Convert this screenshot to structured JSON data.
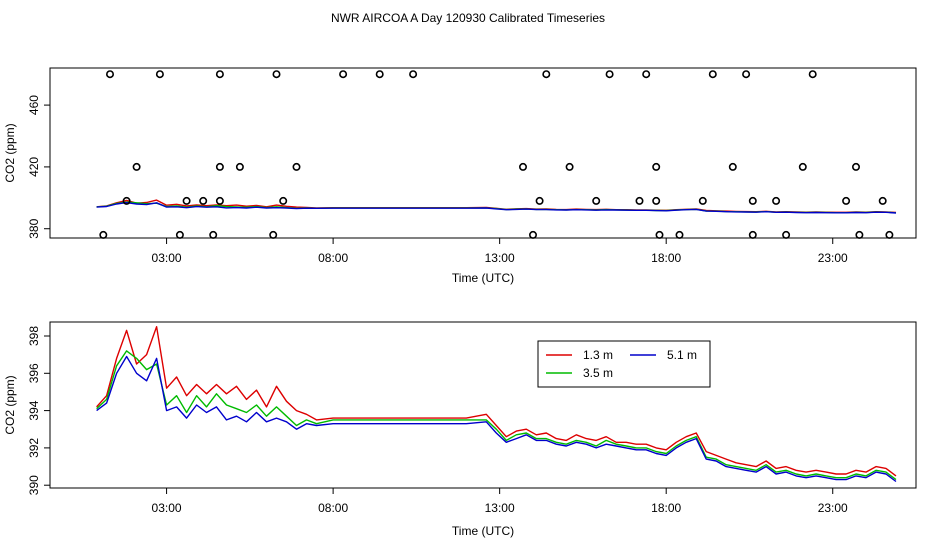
{
  "title": "NWR AIRCOA A  Day 120930  Calibrated Timeseries",
  "chart_data": [
    {
      "type": "scatter",
      "name": "full-range",
      "xlabel": "Time (UTC)",
      "ylabel": "CO2 (ppm)",
      "xlim": [
        -0.5,
        25.5
      ],
      "ylim": [
        374,
        484
      ],
      "xticks": [
        3,
        8,
        13,
        18,
        23
      ],
      "xtick_labels": [
        "03:00",
        "08:00",
        "13:00",
        "18:00",
        "23:00"
      ],
      "yticks": [
        380,
        420,
        460
      ],
      "ytick_labels": [
        "380",
        "420",
        "460"
      ],
      "outliers": {
        "x": [
          1.3,
          2.8,
          4.6,
          6.3,
          8.3,
          9.4,
          10.4,
          14.4,
          16.3,
          17.4,
          19.4,
          20.4,
          22.4,
          2.1,
          4.6,
          5.2,
          6.9,
          13.7,
          15.1,
          17.7,
          20.0,
          22.1,
          23.7,
          1.8,
          3.6,
          4.6,
          6.5,
          15.9,
          17.2,
          19.1,
          21.3,
          23.4,
          4.1,
          14.2,
          17.7,
          20.6,
          24.5,
          1.1,
          3.4,
          4.4,
          6.2,
          14.0,
          17.8,
          18.4,
          20.6,
          21.6,
          23.8,
          24.7
        ],
        "y": [
          480,
          480,
          480,
          480,
          480,
          480,
          480,
          480,
          480,
          480,
          480,
          480,
          480,
          420,
          420,
          420,
          420,
          420,
          420,
          420,
          420,
          420,
          420,
          398,
          398,
          398,
          398,
          398,
          398,
          398,
          398,
          398,
          398,
          398,
          398,
          398,
          398,
          376,
          376,
          376,
          376,
          376,
          376,
          376,
          376,
          376,
          376,
          376
        ]
      },
      "series": [
        {
          "name": "1.3 m",
          "color": "#dd0000"
        },
        {
          "name": "3.5 m",
          "color": "#00bb00"
        },
        {
          "name": "5.1 m",
          "color": "#0000cc"
        }
      ]
    },
    {
      "type": "line",
      "name": "zoomed",
      "xlabel": "Time (UTC)",
      "ylabel": "CO2 (ppm)",
      "xlim": [
        -0.5,
        25.5
      ],
      "ylim": [
        389.85,
        398.75
      ],
      "xticks": [
        3,
        8,
        13,
        18,
        23
      ],
      "xtick_labels": [
        "03:00",
        "08:00",
        "13:00",
        "18:00",
        "23:00"
      ],
      "yticks": [
        390,
        392,
        394,
        396,
        398
      ],
      "ytick_labels": [
        "390",
        "392",
        "394",
        "396",
        "398"
      ],
      "legend_position": "top-center",
      "x": [
        0.9,
        1.2,
        1.5,
        1.8,
        2.1,
        2.4,
        2.7,
        3.0,
        3.3,
        3.6,
        3.9,
        4.2,
        4.5,
        4.8,
        5.1,
        5.4,
        5.7,
        6.0,
        6.3,
        6.6,
        6.9,
        7.2,
        7.5,
        8.0,
        8.7,
        12.0,
        12.6,
        12.9,
        13.2,
        13.5,
        13.8,
        14.1,
        14.4,
        14.7,
        15.0,
        15.3,
        15.6,
        15.9,
        16.2,
        16.5,
        16.8,
        17.1,
        17.4,
        17.7,
        18.0,
        18.3,
        18.6,
        18.9,
        19.2,
        19.5,
        19.8,
        20.1,
        20.4,
        20.7,
        21.0,
        21.3,
        21.6,
        21.9,
        22.2,
        22.5,
        22.8,
        23.1,
        23.4,
        23.7,
        24.0,
        24.3,
        24.6,
        24.9
      ],
      "series": [
        {
          "name": "1.3 m",
          "color": "#dd0000",
          "values": [
            394.2,
            394.8,
            396.8,
            398.3,
            396.5,
            397.0,
            398.5,
            395.2,
            395.8,
            394.8,
            395.4,
            394.9,
            395.4,
            394.9,
            395.3,
            394.6,
            395.1,
            394.2,
            395.3,
            394.5,
            394.0,
            393.8,
            393.5,
            393.6,
            393.6,
            393.6,
            393.8,
            393.2,
            392.6,
            392.9,
            393.0,
            392.7,
            392.8,
            392.5,
            392.4,
            392.7,
            392.5,
            392.4,
            392.6,
            392.3,
            392.3,
            392.2,
            392.2,
            392.0,
            391.9,
            392.3,
            392.6,
            392.8,
            391.8,
            391.6,
            391.4,
            391.2,
            391.1,
            391.0,
            391.3,
            390.9,
            391.0,
            390.8,
            390.7,
            390.8,
            390.7,
            390.6,
            390.6,
            390.8,
            390.7,
            391.0,
            390.9,
            390.5
          ]
        },
        {
          "name": "3.5 m",
          "color": "#00bb00",
          "values": [
            394.1,
            394.6,
            396.4,
            397.2,
            396.8,
            396.2,
            396.5,
            394.3,
            394.8,
            393.9,
            394.8,
            394.2,
            394.9,
            394.3,
            394.1,
            393.9,
            394.3,
            393.7,
            394.2,
            393.7,
            393.2,
            393.5,
            393.3,
            393.5,
            393.5,
            393.5,
            393.5,
            393.0,
            392.4,
            392.7,
            392.8,
            392.5,
            392.5,
            392.3,
            392.2,
            392.4,
            392.3,
            392.1,
            392.4,
            392.2,
            392.1,
            392.0,
            392.0,
            391.8,
            391.7,
            392.1,
            392.4,
            392.6,
            391.5,
            391.4,
            391.1,
            391.0,
            390.9,
            390.8,
            391.1,
            390.7,
            390.8,
            390.6,
            390.5,
            390.6,
            390.5,
            390.4,
            390.4,
            390.6,
            390.5,
            390.8,
            390.7,
            390.3
          ]
        },
        {
          "name": "5.1 m",
          "color": "#0000cc",
          "values": [
            394.0,
            394.4,
            396.0,
            396.9,
            396.0,
            395.6,
            396.8,
            394.0,
            394.2,
            393.6,
            394.3,
            393.9,
            394.2,
            393.5,
            393.7,
            393.4,
            393.9,
            393.4,
            393.6,
            393.4,
            393.0,
            393.3,
            393.2,
            393.3,
            393.3,
            393.3,
            393.4,
            392.8,
            392.3,
            392.5,
            392.7,
            392.4,
            392.4,
            392.2,
            392.1,
            392.3,
            392.2,
            392.0,
            392.2,
            392.1,
            392.0,
            391.9,
            391.9,
            391.7,
            391.6,
            392.0,
            392.3,
            392.5,
            391.4,
            391.3,
            391.0,
            390.9,
            390.8,
            390.7,
            391.0,
            390.6,
            390.7,
            390.5,
            390.4,
            390.5,
            390.4,
            390.3,
            390.3,
            390.5,
            390.4,
            390.7,
            390.6,
            390.2
          ]
        }
      ]
    }
  ]
}
